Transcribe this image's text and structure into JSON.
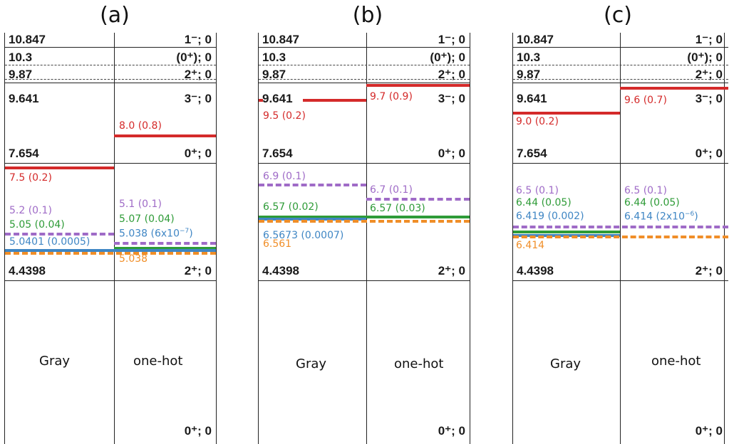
{
  "colors": {
    "red": "#d42a2a",
    "purple": "#9f6bc7",
    "green": "#2e9b37",
    "blue": "#3f86c4",
    "orange": "#f08e28",
    "black": "#222222"
  },
  "panels": [
    {
      "title": "(a)",
      "states": {
        "e10847": "10.847",
        "j10847": "1⁻;  0",
        "e103": "10.3",
        "j103": "(0⁺); 0",
        "e987": "9.87",
        "j987": "2⁺; 0",
        "e9641": "9.641",
        "j9641": "3⁻; 0",
        "e7654": "7.654",
        "j7654": "0⁺;  0",
        "e44398": "4.4398",
        "j44398": "2⁺;  0",
        "jground": "0⁺;  0"
      },
      "gray_label": "Gray",
      "onehot_label": "one-hot",
      "labels": {
        "l1": "8.0 (0.8)",
        "l2": "7.5 (0.2)",
        "l3": "5.2 (0.1)",
        "l4": "5.05 (0.04)",
        "l5": "5.0401 (0.0005)",
        "l6": "5.1 (0.1)",
        "l7": "5.07 (0.04)",
        "l8": "5.038 (6x10",
        "l8exp": "−7",
        "l8end": ")",
        "l9": "5.038"
      }
    },
    {
      "title": "(b)",
      "states": {
        "e10847": "10.847",
        "j10847": "1⁻;  0",
        "e103": "10.3",
        "j103": "(0⁺); 0",
        "e987": "9.87",
        "j987": "2⁺; 0",
        "e9641": "9.641",
        "j9641": "3⁻; 0",
        "e7654": "7.654",
        "j7654": "0⁺;  0",
        "e44398": "4.4398",
        "j44398": "2⁺;  0",
        "jground": "0⁺;  0"
      },
      "gray_label": "Gray",
      "onehot_label": "one-hot",
      "labels": {
        "l1": "9.5 (0.2)",
        "l2": "9.7 (0.9)",
        "l3": "6.9 (0.1)",
        "l4": "6.57 (0.02)",
        "l5": "6.5673 (0.0007)",
        "l6": "6.561",
        "l7": "6.7 (0.1)",
        "l8": "6.57 (0.03)"
      }
    },
    {
      "title": "(c)",
      "states": {
        "e10847": "10.847",
        "j10847": "1⁻;  0",
        "e103": "10.3",
        "j103": "(0⁺); 0",
        "e987": "9.87",
        "j987": "2⁺; 0",
        "e9641": "9.641",
        "j9641": "3⁻; 0",
        "e7654": "7.654",
        "j7654": "0⁺;  0",
        "e44398": "4.4398",
        "j44398": "2⁺;  0",
        "jground": "0⁺;  0"
      },
      "gray_label": "Gray",
      "onehot_label": "one-hot",
      "labels": {
        "l1": "9.0 (0.2)",
        "l2": "9.6 (0.7)",
        "l3": "6.5 (0.1)",
        "l4": "6.44 (0.05)",
        "l5": "6.419 (0.002)",
        "l6": "6.414",
        "l7": "6.5 (0.1)",
        "l8": "6.44 (0.05)",
        "l9": "6.414 (2x10",
        "l9exp": "−6",
        "l9end": ")"
      }
    }
  ]
}
